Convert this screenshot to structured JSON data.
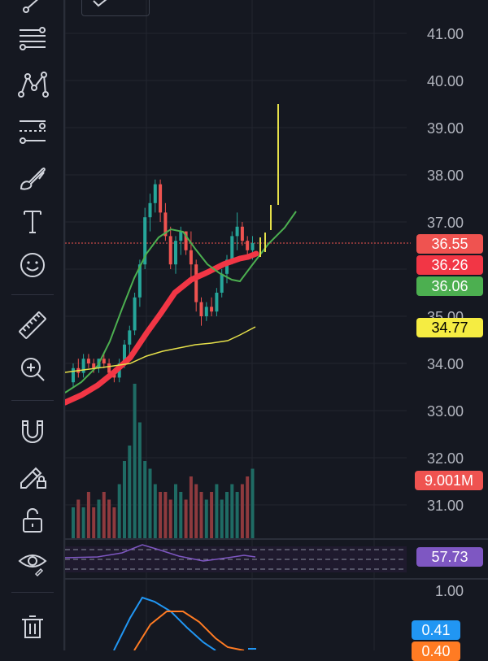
{
  "toolbar": {
    "tools": [
      {
        "name": "trend-line-icon"
      },
      {
        "name": "fib-lines-icon"
      },
      {
        "name": "pattern-icon"
      },
      {
        "name": "forecast-icon"
      },
      {
        "name": "brush-icon"
      },
      {
        "name": "text-icon"
      },
      {
        "name": "emoji-icon"
      },
      {
        "name": "ruler-icon"
      },
      {
        "name": "zoom-in-icon"
      },
      {
        "name": "magnet-icon"
      },
      {
        "name": "lock-drawing-icon"
      },
      {
        "name": "unlock-icon"
      },
      {
        "name": "eye-icon"
      },
      {
        "name": "trash-icon"
      }
    ]
  },
  "price_axis": {
    "labels": [
      "41.00",
      "40.00",
      "39.00",
      "38.00",
      "37.00",
      "35.00",
      "34.00",
      "33.00",
      "32.00",
      "31.00"
    ]
  },
  "tags": {
    "price_red_light": "36.55",
    "price_red": "36.26",
    "price_green": "36.06",
    "price_yellow": "34.77",
    "volume": "9.001M",
    "rsi": "57.73",
    "macd_axis": "1.00",
    "macd_blue": "0.41",
    "macd_orange": "0.40"
  },
  "colors": {
    "up": "#26a69a",
    "down": "#ef5350",
    "ma_fast": "#4caf50",
    "ma_slow": "#f23645",
    "ma_long": "#e6e04a",
    "rsi": "#7e57c2",
    "macd": "#2196f3",
    "signal": "#ff7b23"
  },
  "chart_data": {
    "type": "candlestick",
    "ylim": [
      30.3,
      41.5
    ],
    "candles": [
      [
        33.6,
        34.0,
        33.5,
        33.9
      ],
      [
        33.9,
        34.1,
        33.7,
        33.8
      ],
      [
        33.8,
        34.2,
        33.7,
        34.1
      ],
      [
        34.1,
        34.2,
        33.9,
        34.0
      ],
      [
        34.0,
        34.1,
        33.8,
        33.9
      ],
      [
        33.9,
        34.1,
        33.8,
        34.1
      ],
      [
        34.1,
        34.2,
        33.9,
        34.0
      ],
      [
        34.0,
        34.1,
        33.7,
        33.8
      ],
      [
        33.8,
        33.9,
        33.6,
        33.7
      ],
      [
        33.7,
        34.1,
        33.6,
        34.0
      ],
      [
        34.0,
        34.5,
        33.9,
        34.4
      ],
      [
        34.4,
        34.8,
        34.2,
        34.7
      ],
      [
        34.7,
        35.5,
        34.6,
        35.4
      ],
      [
        35.4,
        36.2,
        35.2,
        36.1
      ],
      [
        36.1,
        37.3,
        36.0,
        37.1
      ],
      [
        37.1,
        37.6,
        36.8,
        37.4
      ],
      [
        37.4,
        37.9,
        37.2,
        37.8
      ],
      [
        37.8,
        37.9,
        37.0,
        37.2
      ],
      [
        37.2,
        37.4,
        36.6,
        36.7
      ],
      [
        36.7,
        36.9,
        36.0,
        36.1
      ],
      [
        36.1,
        36.7,
        35.9,
        36.6
      ],
      [
        36.6,
        36.9,
        36.3,
        36.8
      ],
      [
        36.8,
        36.8,
        36.3,
        36.4
      ],
      [
        36.4,
        36.8,
        35.7,
        36.1
      ],
      [
        36.1,
        36.2,
        35.1,
        35.3
      ],
      [
        35.3,
        35.4,
        34.8,
        35.0
      ],
      [
        35.0,
        35.3,
        34.9,
        35.2
      ],
      [
        35.2,
        35.4,
        35.0,
        35.1
      ],
      [
        35.1,
        35.6,
        35.0,
        35.5
      ],
      [
        35.5,
        36.0,
        35.4,
        35.9
      ],
      [
        35.9,
        36.3,
        35.7,
        36.2
      ],
      [
        36.2,
        36.8,
        36.1,
        36.7
      ],
      [
        36.7,
        37.2,
        36.4,
        36.9
      ],
      [
        36.9,
        37.0,
        36.5,
        36.6
      ],
      [
        36.6,
        36.7,
        36.3,
        36.4
      ],
      [
        36.4,
        36.7,
        36.2,
        36.55
      ]
    ],
    "volume": [
      4,
      5,
      4,
      6,
      4,
      5,
      6,
      5,
      4,
      7,
      10,
      12,
      20,
      15,
      10,
      9,
      7,
      6,
      6,
      5,
      7,
      6,
      5,
      8,
      7,
      6,
      5,
      6,
      7,
      5,
      6,
      7,
      6,
      7,
      8,
      9
    ]
  }
}
